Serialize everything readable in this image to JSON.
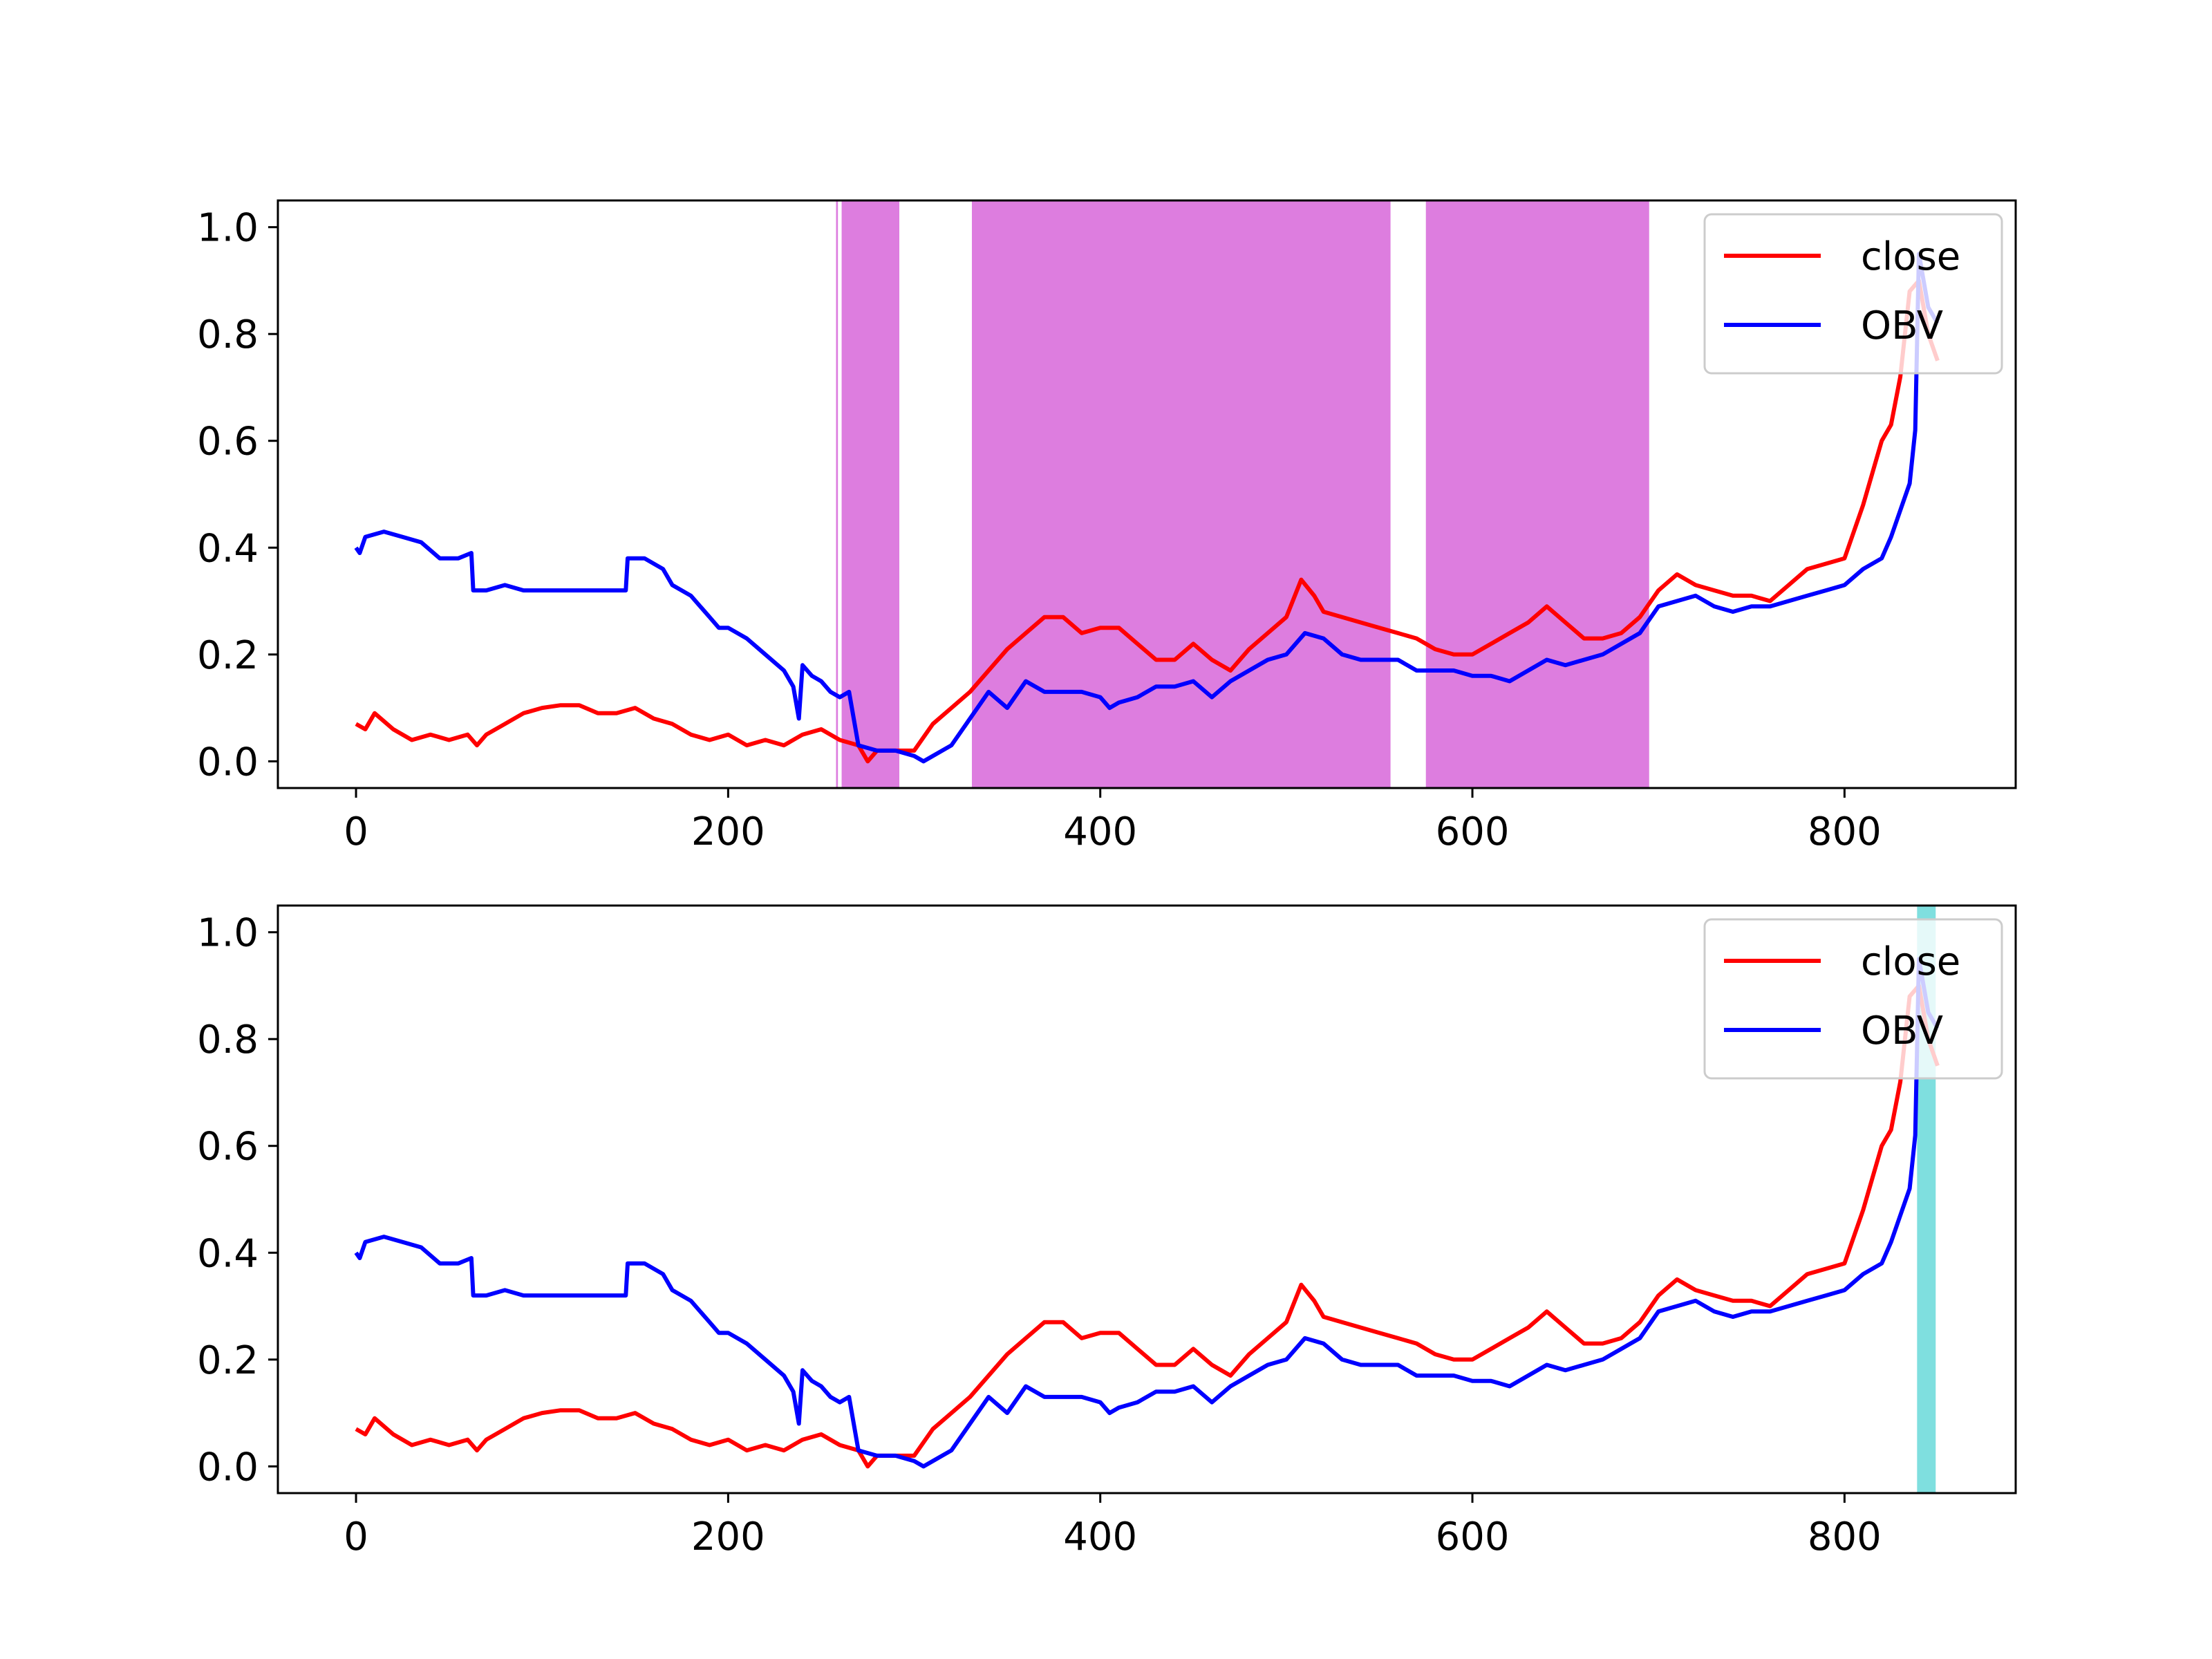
{
  "colors": {
    "close": "#ff0000",
    "obv": "#0000ff",
    "span_top": "#dd7ddf",
    "span_bottom": "#7fdfdf",
    "background": "#ffffff",
    "axis": "#000000"
  },
  "chart_data": [
    {
      "type": "line",
      "title": "",
      "xlabel": "",
      "ylabel": "",
      "xlim": [
        -42,
        892
      ],
      "ylim": [
        -0.05,
        1.05
      ],
      "xticks": [
        0,
        200,
        400,
        600,
        800
      ],
      "xtick_labels": [
        "0",
        "200",
        "400",
        "600",
        "800"
      ],
      "yticks": [
        0.0,
        0.2,
        0.4,
        0.6,
        0.8,
        1.0
      ],
      "ytick_labels": [
        "0.0",
        "0.2",
        "0.4",
        "0.6",
        "0.8",
        "1.0"
      ],
      "grid": false,
      "legend": {
        "position": "upper right",
        "entries": [
          "close",
          "OBV"
        ]
      },
      "shaded_spans": [
        [
          258,
          259
        ],
        [
          261,
          292
        ],
        [
          331,
          556
        ],
        [
          575,
          695
        ]
      ],
      "series": [
        {
          "name": "close",
          "color": "#ff0000",
          "x": [
            0,
            5,
            10,
            20,
            30,
            40,
            50,
            60,
            65,
            70,
            80,
            90,
            100,
            110,
            120,
            130,
            140,
            150,
            160,
            170,
            180,
            190,
            200,
            210,
            220,
            230,
            240,
            250,
            260,
            270,
            275,
            280,
            290,
            300,
            310,
            320,
            330,
            340,
            350,
            360,
            370,
            380,
            390,
            400,
            410,
            420,
            430,
            440,
            450,
            460,
            470,
            480,
            490,
            500,
            508,
            515,
            520,
            530,
            540,
            550,
            560,
            570,
            580,
            590,
            600,
            610,
            620,
            630,
            640,
            650,
            660,
            670,
            680,
            690,
            700,
            710,
            720,
            730,
            740,
            750,
            760,
            770,
            780,
            790,
            800,
            810,
            820,
            825,
            830,
            835,
            840,
            845,
            850
          ],
          "y": [
            0.07,
            0.06,
            0.09,
            0.06,
            0.04,
            0.05,
            0.04,
            0.05,
            0.03,
            0.05,
            0.07,
            0.09,
            0.1,
            0.105,
            0.105,
            0.09,
            0.09,
            0.1,
            0.08,
            0.07,
            0.05,
            0.04,
            0.05,
            0.03,
            0.04,
            0.03,
            0.05,
            0.06,
            0.04,
            0.03,
            0.0,
            0.02,
            0.02,
            0.02,
            0.07,
            0.1,
            0.13,
            0.17,
            0.21,
            0.24,
            0.27,
            0.27,
            0.24,
            0.25,
            0.25,
            0.22,
            0.19,
            0.19,
            0.22,
            0.19,
            0.17,
            0.21,
            0.24,
            0.27,
            0.34,
            0.31,
            0.28,
            0.27,
            0.26,
            0.25,
            0.24,
            0.23,
            0.21,
            0.2,
            0.2,
            0.22,
            0.24,
            0.26,
            0.29,
            0.26,
            0.23,
            0.23,
            0.24,
            0.27,
            0.32,
            0.35,
            0.33,
            0.32,
            0.31,
            0.31,
            0.3,
            0.33,
            0.36,
            0.37,
            0.38,
            0.48,
            0.6,
            0.63,
            0.72,
            0.88,
            0.9,
            0.8,
            0.75
          ]
        },
        {
          "name": "OBV",
          "color": "#0000ff",
          "x": [
            0,
            2,
            5,
            15,
            25,
            35,
            45,
            55,
            62,
            63,
            70,
            80,
            90,
            100,
            110,
            120,
            130,
            145,
            146,
            155,
            165,
            170,
            180,
            185,
            190,
            195,
            200,
            210,
            220,
            230,
            235,
            238,
            240,
            245,
            250,
            255,
            260,
            265,
            270,
            280,
            290,
            300,
            305,
            310,
            320,
            330,
            340,
            350,
            360,
            370,
            380,
            390,
            400,
            405,
            410,
            420,
            430,
            440,
            450,
            460,
            470,
            480,
            490,
            500,
            510,
            520,
            530,
            540,
            550,
            560,
            570,
            580,
            590,
            600,
            610,
            620,
            630,
            640,
            650,
            660,
            670,
            680,
            690,
            700,
            710,
            720,
            730,
            740,
            750,
            760,
            770,
            780,
            790,
            800,
            810,
            820,
            825,
            830,
            835,
            838,
            840,
            845,
            850
          ],
          "y": [
            0.4,
            0.39,
            0.42,
            0.43,
            0.42,
            0.41,
            0.38,
            0.38,
            0.39,
            0.32,
            0.32,
            0.33,
            0.32,
            0.32,
            0.32,
            0.32,
            0.32,
            0.32,
            0.38,
            0.38,
            0.36,
            0.33,
            0.31,
            0.29,
            0.27,
            0.25,
            0.25,
            0.23,
            0.2,
            0.17,
            0.14,
            0.08,
            0.18,
            0.16,
            0.15,
            0.13,
            0.12,
            0.13,
            0.03,
            0.02,
            0.02,
            0.01,
            0.0,
            0.01,
            0.03,
            0.08,
            0.13,
            0.1,
            0.15,
            0.13,
            0.13,
            0.13,
            0.12,
            0.1,
            0.11,
            0.12,
            0.14,
            0.14,
            0.15,
            0.12,
            0.15,
            0.17,
            0.19,
            0.2,
            0.24,
            0.23,
            0.2,
            0.19,
            0.19,
            0.19,
            0.17,
            0.17,
            0.17,
            0.16,
            0.16,
            0.15,
            0.17,
            0.19,
            0.18,
            0.19,
            0.2,
            0.22,
            0.24,
            0.29,
            0.3,
            0.31,
            0.29,
            0.28,
            0.29,
            0.29,
            0.3,
            0.31,
            0.32,
            0.33,
            0.36,
            0.38,
            0.42,
            0.47,
            0.52,
            0.62,
            0.95,
            0.85,
            0.82
          ]
        }
      ]
    },
    {
      "type": "line",
      "title": "",
      "xlabel": "",
      "ylabel": "",
      "xlim": [
        -42,
        892
      ],
      "ylim": [
        -0.05,
        1.05
      ],
      "xticks": [
        0,
        200,
        400,
        600,
        800
      ],
      "xtick_labels": [
        "0",
        "200",
        "400",
        "600",
        "800"
      ],
      "yticks": [
        0.0,
        0.2,
        0.4,
        0.6,
        0.8,
        1.0
      ],
      "ytick_labels": [
        "0.0",
        "0.2",
        "0.4",
        "0.6",
        "0.8",
        "1.0"
      ],
      "grid": false,
      "legend": {
        "position": "upper right",
        "entries": [
          "close",
          "OBV"
        ]
      },
      "shaded_spans": [
        [
          839,
          849
        ]
      ],
      "series": [
        {
          "name": "close",
          "color": "#ff0000",
          "x": [
            0,
            5,
            10,
            20,
            30,
            40,
            50,
            60,
            65,
            70,
            80,
            90,
            100,
            110,
            120,
            130,
            140,
            150,
            160,
            170,
            180,
            190,
            200,
            210,
            220,
            230,
            240,
            250,
            260,
            270,
            275,
            280,
            290,
            300,
            310,
            320,
            330,
            340,
            350,
            360,
            370,
            380,
            390,
            400,
            410,
            420,
            430,
            440,
            450,
            460,
            470,
            480,
            490,
            500,
            508,
            515,
            520,
            530,
            540,
            550,
            560,
            570,
            580,
            590,
            600,
            610,
            620,
            630,
            640,
            650,
            660,
            670,
            680,
            690,
            700,
            710,
            720,
            730,
            740,
            750,
            760,
            770,
            780,
            790,
            800,
            810,
            820,
            825,
            830,
            835,
            840,
            845,
            850
          ],
          "y": [
            0.07,
            0.06,
            0.09,
            0.06,
            0.04,
            0.05,
            0.04,
            0.05,
            0.03,
            0.05,
            0.07,
            0.09,
            0.1,
            0.105,
            0.105,
            0.09,
            0.09,
            0.1,
            0.08,
            0.07,
            0.05,
            0.04,
            0.05,
            0.03,
            0.04,
            0.03,
            0.05,
            0.06,
            0.04,
            0.03,
            0.0,
            0.02,
            0.02,
            0.02,
            0.07,
            0.1,
            0.13,
            0.17,
            0.21,
            0.24,
            0.27,
            0.27,
            0.24,
            0.25,
            0.25,
            0.22,
            0.19,
            0.19,
            0.22,
            0.19,
            0.17,
            0.21,
            0.24,
            0.27,
            0.34,
            0.31,
            0.28,
            0.27,
            0.26,
            0.25,
            0.24,
            0.23,
            0.21,
            0.2,
            0.2,
            0.22,
            0.24,
            0.26,
            0.29,
            0.26,
            0.23,
            0.23,
            0.24,
            0.27,
            0.32,
            0.35,
            0.33,
            0.32,
            0.31,
            0.31,
            0.3,
            0.33,
            0.36,
            0.37,
            0.38,
            0.48,
            0.6,
            0.63,
            0.72,
            0.88,
            0.9,
            0.8,
            0.75
          ]
        },
        {
          "name": "OBV",
          "color": "#0000ff",
          "x": [
            0,
            2,
            5,
            15,
            25,
            35,
            45,
            55,
            62,
            63,
            70,
            80,
            90,
            100,
            110,
            120,
            130,
            145,
            146,
            155,
            165,
            170,
            180,
            185,
            190,
            195,
            200,
            210,
            220,
            230,
            235,
            238,
            240,
            245,
            250,
            255,
            260,
            265,
            270,
            280,
            290,
            300,
            305,
            310,
            320,
            330,
            340,
            350,
            360,
            370,
            380,
            390,
            400,
            405,
            410,
            420,
            430,
            440,
            450,
            460,
            470,
            480,
            490,
            500,
            510,
            520,
            530,
            540,
            550,
            560,
            570,
            580,
            590,
            600,
            610,
            620,
            630,
            640,
            650,
            660,
            670,
            680,
            690,
            700,
            710,
            720,
            730,
            740,
            750,
            760,
            770,
            780,
            790,
            800,
            810,
            820,
            825,
            830,
            835,
            838,
            840,
            845,
            850
          ],
          "y": [
            0.4,
            0.39,
            0.42,
            0.43,
            0.42,
            0.41,
            0.38,
            0.38,
            0.39,
            0.32,
            0.32,
            0.33,
            0.32,
            0.32,
            0.32,
            0.32,
            0.32,
            0.32,
            0.38,
            0.38,
            0.36,
            0.33,
            0.31,
            0.29,
            0.27,
            0.25,
            0.25,
            0.23,
            0.2,
            0.17,
            0.14,
            0.08,
            0.18,
            0.16,
            0.15,
            0.13,
            0.12,
            0.13,
            0.03,
            0.02,
            0.02,
            0.01,
            0.0,
            0.01,
            0.03,
            0.08,
            0.13,
            0.1,
            0.15,
            0.13,
            0.13,
            0.13,
            0.12,
            0.1,
            0.11,
            0.12,
            0.14,
            0.14,
            0.15,
            0.12,
            0.15,
            0.17,
            0.19,
            0.2,
            0.24,
            0.23,
            0.2,
            0.19,
            0.19,
            0.19,
            0.17,
            0.17,
            0.17,
            0.16,
            0.16,
            0.15,
            0.17,
            0.19,
            0.18,
            0.19,
            0.2,
            0.22,
            0.24,
            0.29,
            0.3,
            0.31,
            0.29,
            0.28,
            0.29,
            0.29,
            0.3,
            0.31,
            0.32,
            0.33,
            0.36,
            0.38,
            0.42,
            0.47,
            0.52,
            0.62,
            0.95,
            0.85,
            0.82
          ]
        }
      ]
    }
  ]
}
